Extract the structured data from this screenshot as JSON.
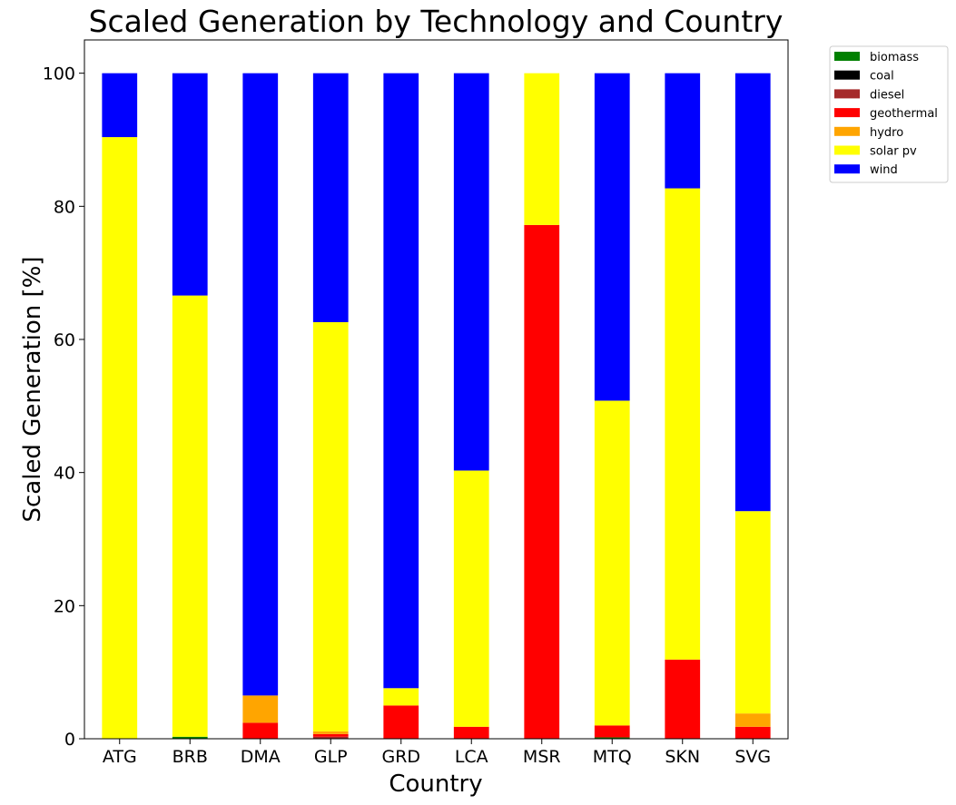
{
  "chart_data": {
    "type": "bar",
    "stacked": true,
    "title": "Scaled Generation by Technology and Country",
    "xlabel": "Country",
    "ylabel": "Scaled Generation [%]",
    "ylim": [
      0,
      105
    ],
    "yticks": [
      0,
      20,
      40,
      60,
      80,
      100
    ],
    "grid": false,
    "legend_position": "outside top-right",
    "categories": [
      "ATG",
      "BRB",
      "DMA",
      "GLP",
      "GRD",
      "LCA",
      "MSR",
      "MTQ",
      "SKN",
      "SVG"
    ],
    "series": [
      {
        "name": "biomass",
        "color": "#008000",
        "values": [
          0,
          0.3,
          0,
          0,
          0,
          0,
          0,
          0.2,
          0,
          0
        ]
      },
      {
        "name": "coal",
        "color": "#000000",
        "values": [
          0,
          0,
          0,
          0,
          0,
          0,
          0,
          0,
          0,
          0
        ]
      },
      {
        "name": "diesel",
        "color": "#a52a2a",
        "values": [
          0,
          0,
          0,
          0.3,
          0,
          0,
          0,
          0,
          0,
          0
        ]
      },
      {
        "name": "geothermal",
        "color": "#ff0000",
        "values": [
          0,
          0,
          2.4,
          0.4,
          5.0,
          1.8,
          77.2,
          1.8,
          11.9,
          1.8
        ]
      },
      {
        "name": "hydro",
        "color": "#ffa500",
        "values": [
          0,
          0,
          4.1,
          0.4,
          0,
          0,
          0,
          0,
          0,
          2.0
        ]
      },
      {
        "name": "solar pv",
        "color": "#ffff00",
        "values": [
          90.4,
          66.3,
          0,
          61.5,
          2.6,
          38.5,
          22.8,
          48.8,
          70.8,
          30.4
        ]
      },
      {
        "name": "wind",
        "color": "#0000ff",
        "values": [
          9.6,
          33.4,
          93.5,
          37.4,
          92.4,
          59.7,
          0,
          49.2,
          17.3,
          65.8
        ]
      }
    ]
  }
}
